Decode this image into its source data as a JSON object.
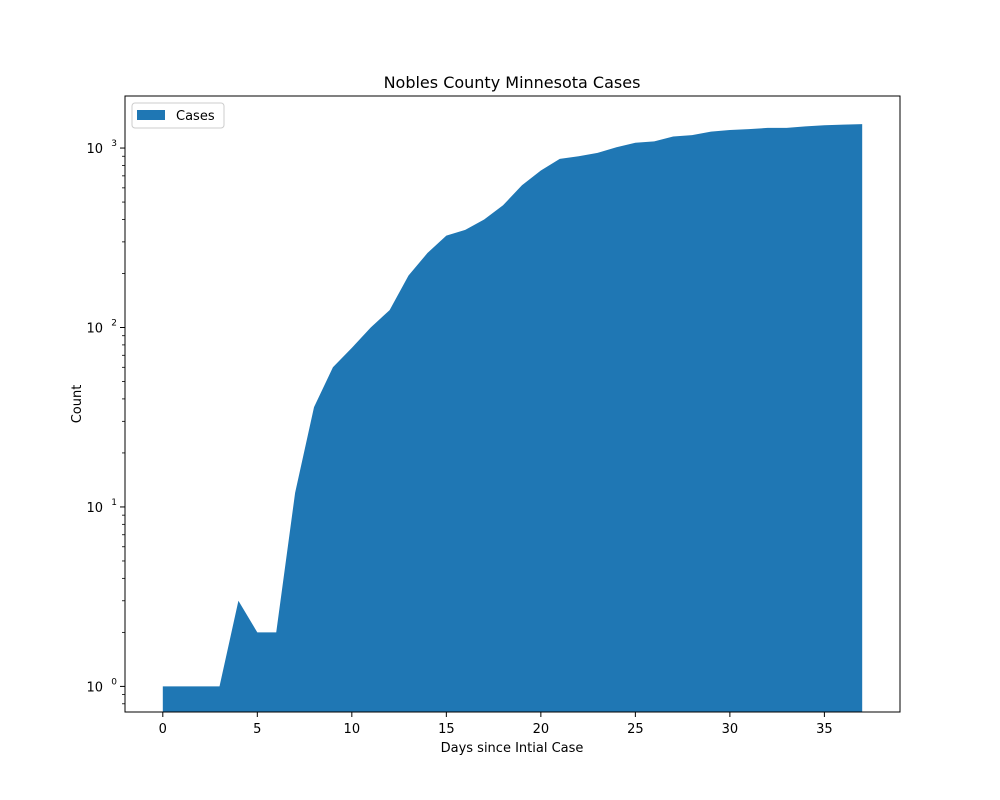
{
  "chart_data": {
    "type": "area",
    "title": "Nobles County Minnesota Cases",
    "xlabel": "Days since Intial Case",
    "ylabel": "Count",
    "yscale": "log",
    "xlim": [
      -2,
      39
    ],
    "ylim": [
      0.72,
      1950
    ],
    "x_ticks": [
      0,
      5,
      10,
      15,
      20,
      25,
      30,
      35
    ],
    "y_ticks": [
      1,
      10,
      100,
      1000
    ],
    "y_tick_labels": [
      {
        "base": "10",
        "exp": "0"
      },
      {
        "base": "10",
        "exp": "1"
      },
      {
        "base": "10",
        "exp": "2"
      },
      {
        "base": "10",
        "exp": "3"
      }
    ],
    "grid": false,
    "legend": {
      "placement": "upper-left",
      "entries": [
        "Cases"
      ]
    },
    "series": [
      {
        "name": "Cases",
        "color": "#1f77b4",
        "x": [
          0,
          1,
          2,
          3,
          4,
          5,
          6,
          7,
          8,
          9,
          10,
          11,
          12,
          13,
          14,
          15,
          16,
          17,
          18,
          19,
          20,
          21,
          22,
          23,
          24,
          25,
          26,
          27,
          28,
          29,
          30,
          31,
          32,
          33,
          34,
          35,
          36,
          37
        ],
        "values": [
          1,
          1,
          1,
          1,
          3,
          2,
          2,
          12,
          36,
          60,
          77,
          100,
          125,
          195,
          260,
          325,
          350,
          400,
          480,
          620,
          750,
          870,
          900,
          940,
          1010,
          1070,
          1090,
          1160,
          1180,
          1235,
          1260,
          1275,
          1295,
          1295,
          1320,
          1340,
          1350,
          1360
        ]
      }
    ]
  }
}
